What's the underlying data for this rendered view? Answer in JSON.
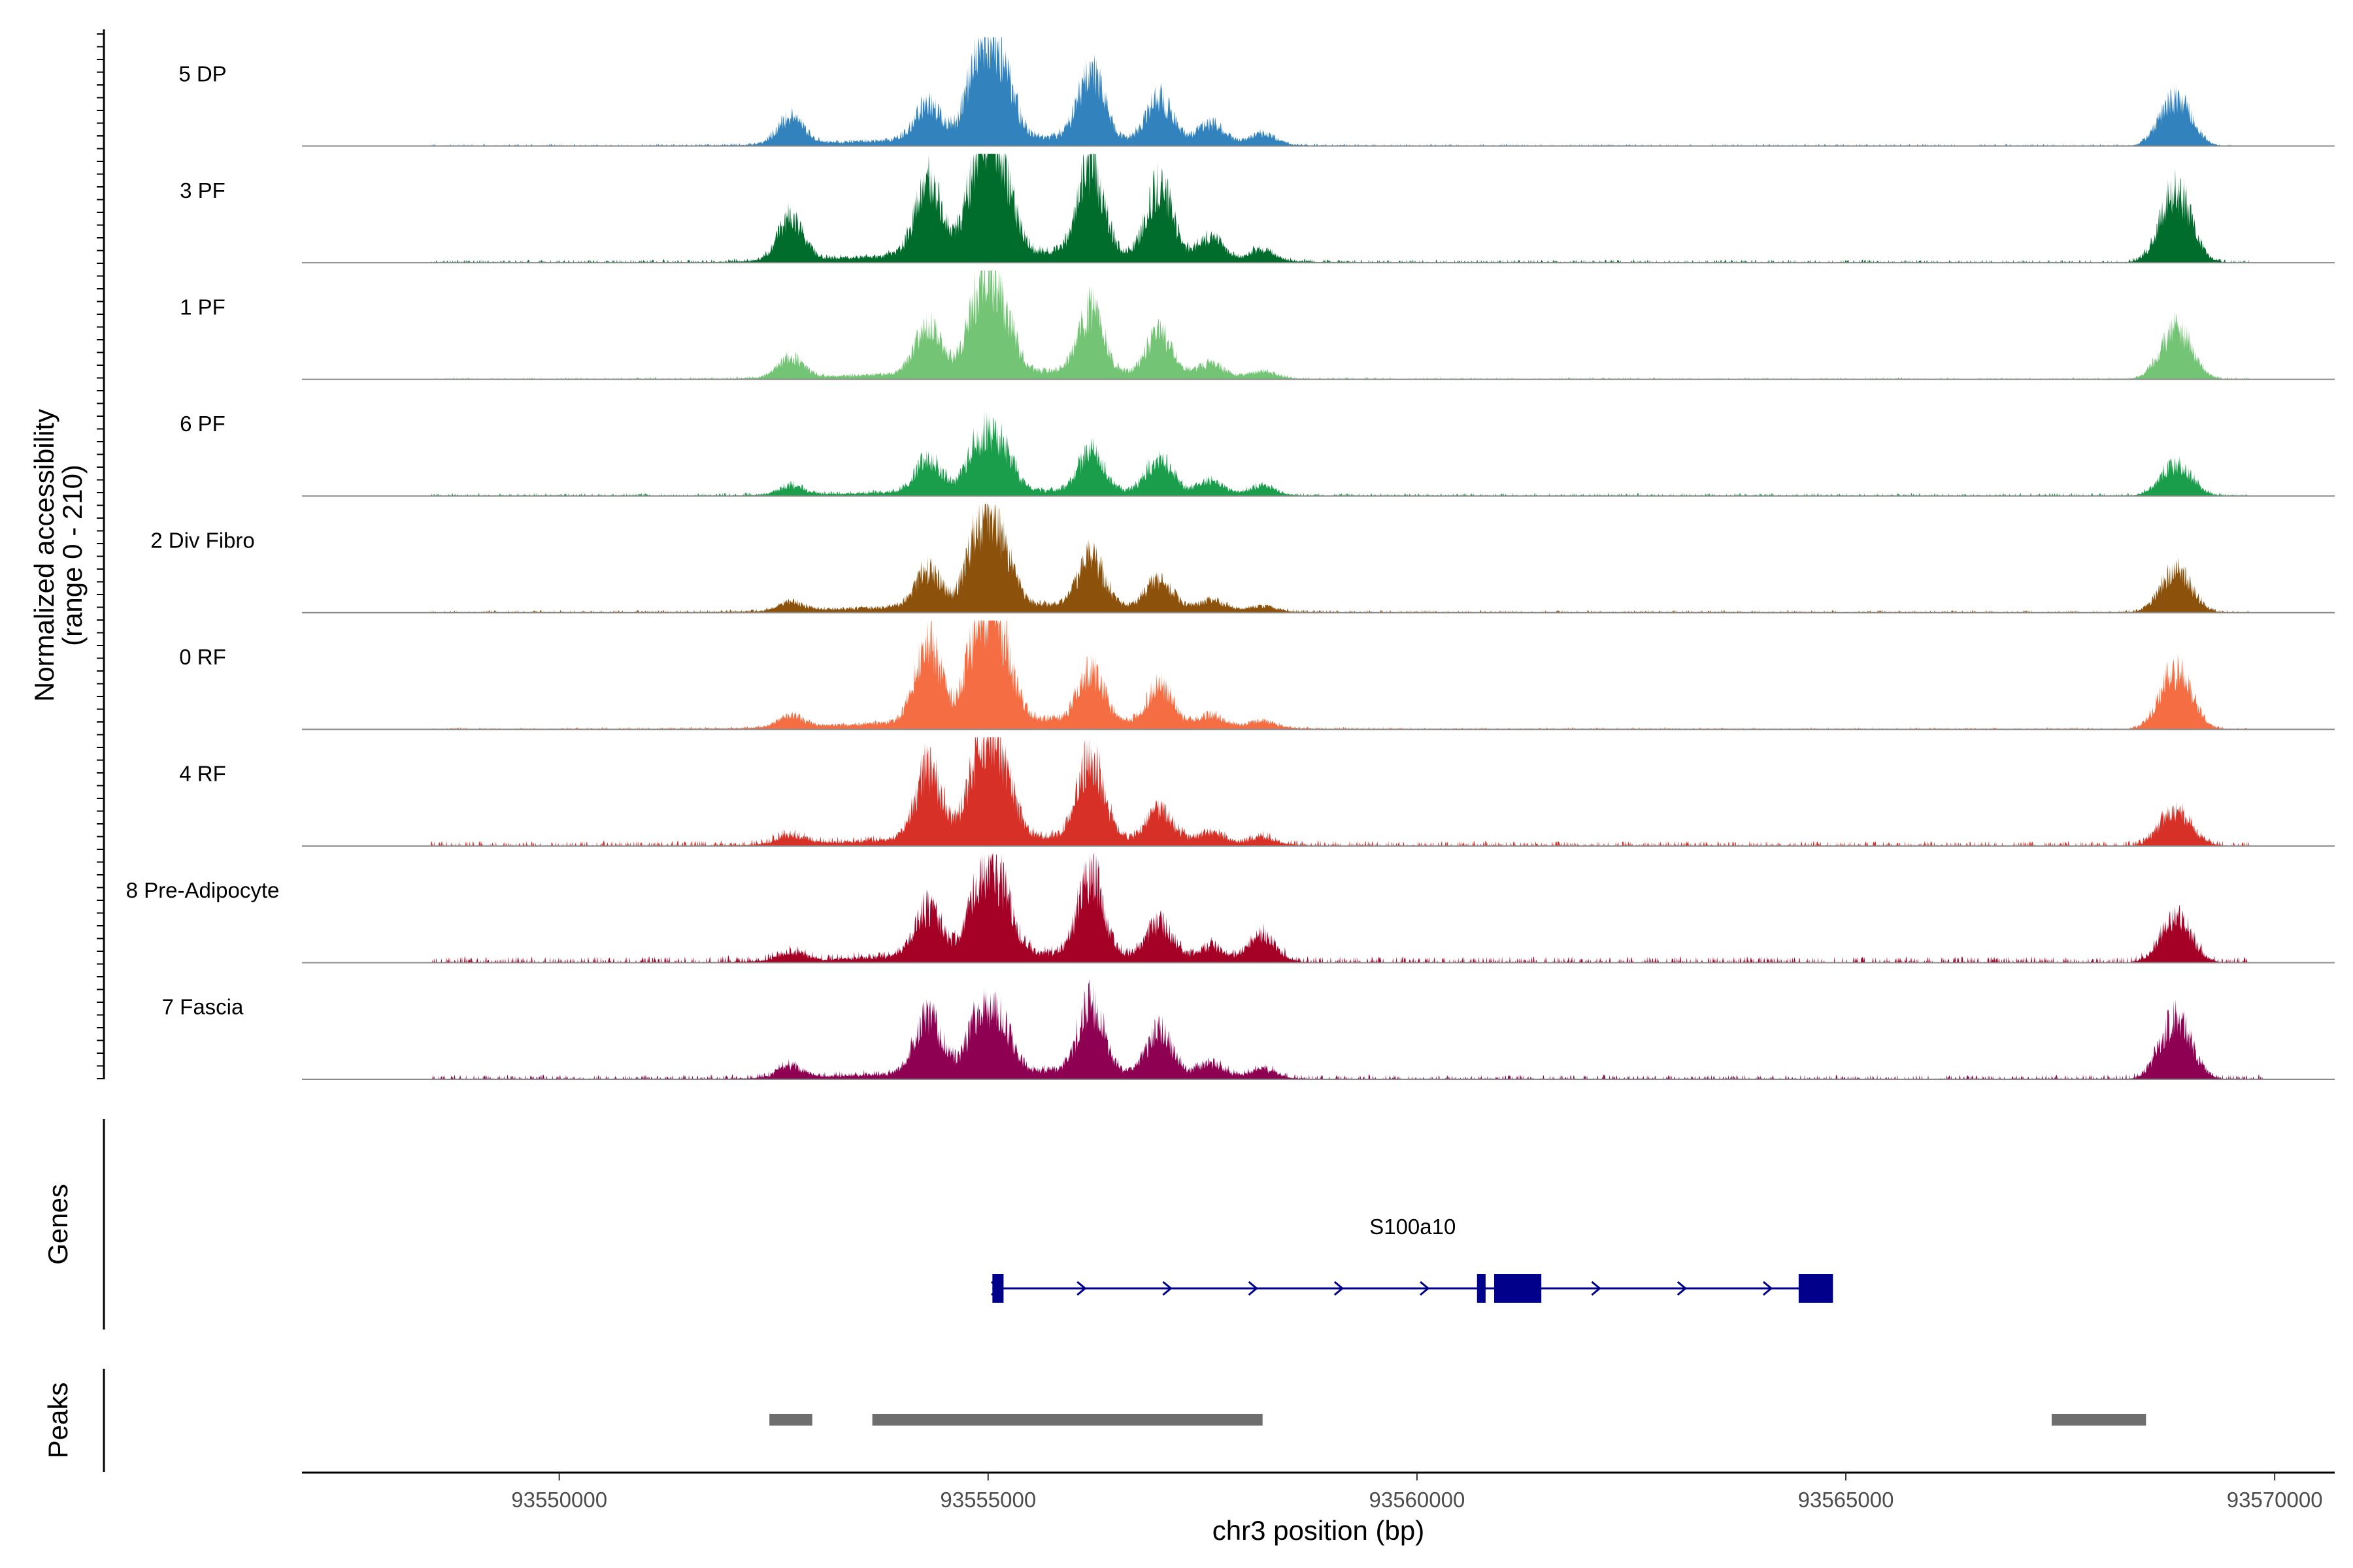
{
  "chart_data": {
    "type": "area",
    "title": "",
    "ylabel_line1": "Normalized accessibility",
    "ylabel_line2": "(range 0 - 210)",
    "xlabel": "chr3 position (bp)",
    "x_range": [
      93547000,
      93570700
    ],
    "y_range": [
      0,
      210
    ],
    "x_ticks": [
      {
        "value": 93550000,
        "label": "93550000"
      },
      {
        "value": 93555000,
        "label": "93555000"
      },
      {
        "value": 93560000,
        "label": "93560000"
      },
      {
        "value": 93565000,
        "label": "93565000"
      },
      {
        "value": 93570000,
        "label": "93570000"
      }
    ],
    "peak_centers_bp": [
      93552700,
      93554300,
      93554900,
      93555150,
      93556200,
      93557000,
      93557600,
      93558200,
      93568850
    ],
    "series": [
      {
        "name": "5 DP",
        "color": "#3182bd",
        "signal_end": 93569500,
        "peaks": [
          60,
          80,
          175,
          150,
          150,
          95,
          45,
          25,
          110
        ],
        "noise": 4
      },
      {
        "name": "3 PF",
        "color": "#006d2c",
        "signal_end": 93569700,
        "peaks": [
          95,
          160,
          205,
          175,
          200,
          160,
          50,
          25,
          160
        ],
        "noise": 6
      },
      {
        "name": "1 PF",
        "color": "#74c476",
        "signal_end": 93569700,
        "peaks": [
          45,
          105,
          155,
          135,
          140,
          95,
          30,
          15,
          115
        ],
        "noise": 4
      },
      {
        "name": "6 PF",
        "color": "#1b9e4b",
        "signal_end": 93569700,
        "peaks": [
          20,
          75,
          100,
          90,
          90,
          80,
          30,
          20,
          70
        ],
        "noise": 6
      },
      {
        "name": "2 Div Fibro",
        "color": "#8c510a",
        "signal_end": 93569700,
        "peaks": [
          20,
          80,
          160,
          120,
          110,
          65,
          20,
          12,
          95
        ],
        "noise": 5
      },
      {
        "name": "0 RF",
        "color": "#f46d43",
        "signal_end": 93569700,
        "peaks": [
          25,
          175,
          195,
          160,
          110,
          85,
          25,
          15,
          135
        ],
        "noise": 4
      },
      {
        "name": "4 RF",
        "color": "#d73027",
        "signal_end": 93569700,
        "peaks": [
          20,
          155,
          165,
          145,
          180,
          70,
          25,
          15,
          80
        ],
        "noise": 10
      },
      {
        "name": "8 Pre-Adipocyte",
        "color": "#a50026",
        "signal_end": 93569700,
        "peaks": [
          20,
          105,
          135,
          130,
          175,
          80,
          30,
          60,
          100
        ],
        "noise": 12
      },
      {
        "name": "7 Fascia",
        "color": "#8e0152",
        "signal_end": 93569900,
        "peaks": [
          25,
          130,
          110,
          95,
          155,
          100,
          30,
          20,
          135
        ],
        "noise": 9
      }
    ],
    "genes": [
      {
        "name": "S100a10",
        "start": 93555050,
        "end": 93564850,
        "strand": "+",
        "exons": [
          [
            93555050,
            93555180
          ],
          [
            93560700,
            93560800
          ],
          [
            93560900,
            93561450
          ],
          [
            93564450,
            93564850
          ]
        ]
      }
    ],
    "peaks": [
      {
        "start": 93552450,
        "end": 93552950
      },
      {
        "start": 93553650,
        "end": 93558200
      },
      {
        "start": 93567400,
        "end": 93568500
      }
    ],
    "panel_labels": {
      "genes": "Genes",
      "peaks": "Peaks"
    }
  }
}
